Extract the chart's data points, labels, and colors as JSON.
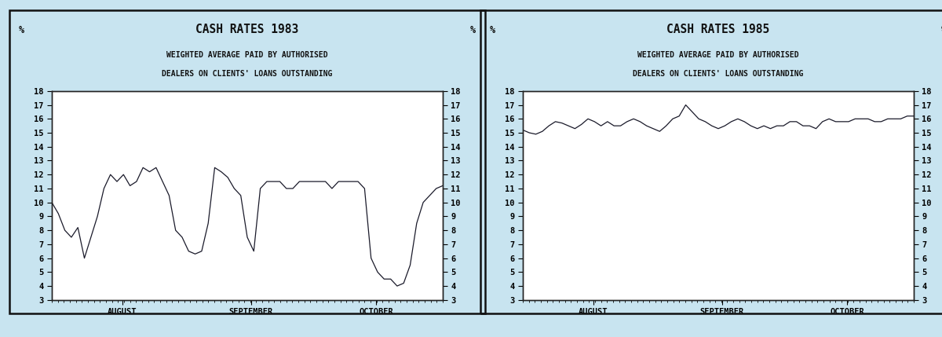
{
  "chart1": {
    "title": "CASH RATES 1983",
    "subtitle1": "WEIGHTED AVERAGE PAID BY AUTHORISED",
    "subtitle2": "DEALERS ON CLIENTS' LOANS OUTSTANDING",
    "pct_label": "%",
    "ylim": [
      3,
      18
    ],
    "yticks": [
      3,
      4,
      5,
      6,
      7,
      8,
      9,
      10,
      11,
      12,
      13,
      14,
      15,
      16,
      17,
      18
    ],
    "xtick_labels": [
      "AUGUST",
      "SEPTEMBER",
      "OCTOBER"
    ],
    "xtick_pos": [
      0.18,
      0.51,
      0.83
    ],
    "data": [
      10.0,
      9.2,
      8.0,
      7.5,
      8.2,
      6.0,
      7.5,
      9.0,
      11.0,
      12.0,
      11.5,
      12.0,
      11.2,
      11.5,
      12.5,
      12.2,
      12.5,
      11.5,
      10.5,
      8.0,
      7.5,
      6.5,
      6.3,
      6.5,
      8.5,
      12.5,
      12.2,
      11.8,
      11.0,
      10.5,
      7.5,
      6.5,
      11.0,
      11.5,
      11.5,
      11.5,
      11.0,
      11.0,
      11.5,
      11.5,
      11.5,
      11.5,
      11.5,
      11.0,
      11.5,
      11.5,
      11.5,
      11.5,
      11.0,
      6.0,
      5.0,
      4.5,
      4.5,
      4.0,
      4.2,
      5.5,
      8.5,
      10.0,
      10.5,
      11.0,
      11.2
    ]
  },
  "chart2": {
    "title": "CASH RATES 1985",
    "subtitle1": "WEIGHTED AVERAGE PAID BY AUTHORISED",
    "subtitle2": "DEALERS ON CLIENTS' LOANS OUTSTANDING",
    "pct_label": "%",
    "ylim": [
      3,
      18
    ],
    "yticks": [
      3,
      4,
      5,
      6,
      7,
      8,
      9,
      10,
      11,
      12,
      13,
      14,
      15,
      16,
      17,
      18
    ],
    "xtick_labels": [
      "AUGUST",
      "SEPTEMBER",
      "OCTOBER"
    ],
    "xtick_pos": [
      0.18,
      0.51,
      0.83
    ],
    "data": [
      15.2,
      15.0,
      14.9,
      15.1,
      15.5,
      15.8,
      15.7,
      15.5,
      15.3,
      15.6,
      16.0,
      15.8,
      15.5,
      15.8,
      15.5,
      15.5,
      15.8,
      16.0,
      15.8,
      15.5,
      15.3,
      15.1,
      15.5,
      16.0,
      16.2,
      17.0,
      16.5,
      16.0,
      15.8,
      15.5,
      15.3,
      15.5,
      15.8,
      16.0,
      15.8,
      15.5,
      15.3,
      15.5,
      15.3,
      15.5,
      15.5,
      15.8,
      15.8,
      15.5,
      15.5,
      15.3,
      15.8,
      16.0,
      15.8,
      15.8,
      15.8,
      16.0,
      16.0,
      16.0,
      15.8,
      15.8,
      16.0,
      16.0,
      16.0,
      16.2,
      16.2
    ]
  },
  "bg_color": "#c8e4f0",
  "plot_bg_color": "#ffffff",
  "line_color": "#1a1a2a",
  "border_color": "#222222",
  "outer_border_color": "#111111",
  "title_fontsize": 10.5,
  "subtitle_fontsize": 7.0,
  "tick_fontsize": 7.5,
  "pct_fontsize": 8.5
}
